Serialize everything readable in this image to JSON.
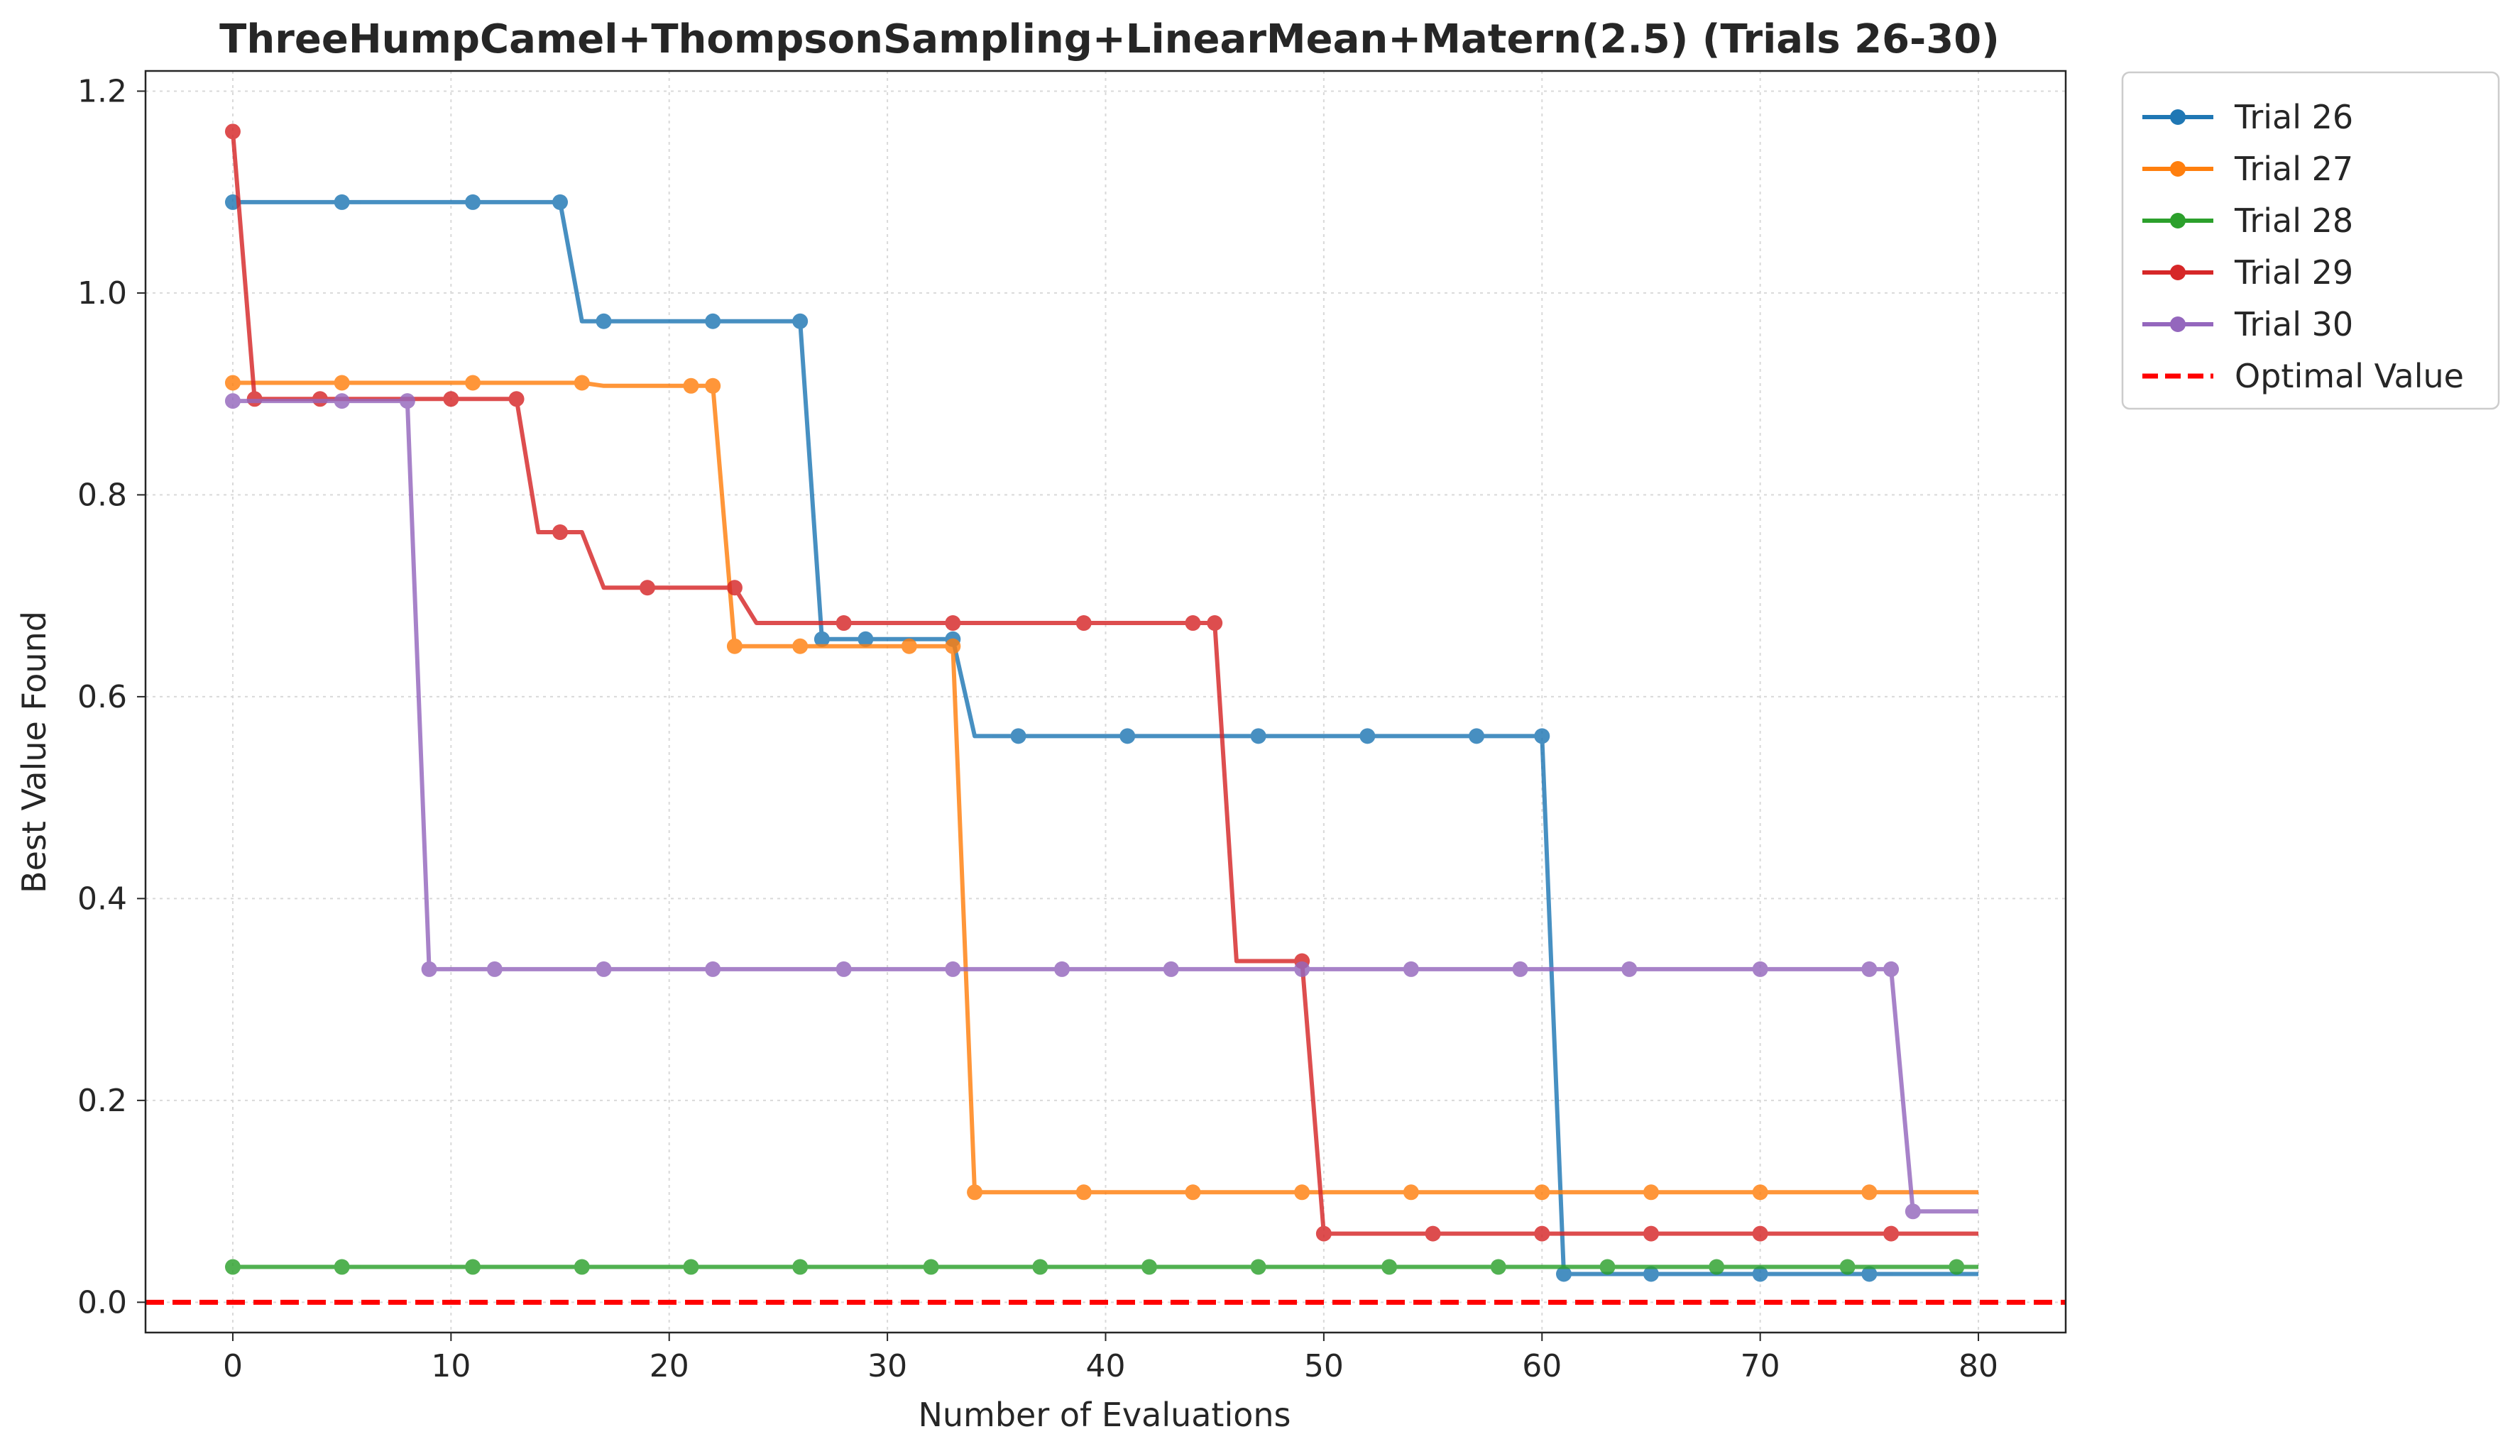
{
  "chart_data": {
    "type": "line",
    "title": "ThreeHumpCamel+ThompsonSampling+LinearMean+Matern(2.5) (Trials 26-30)",
    "xlabel": "Number of Evaluations",
    "ylabel": "Best Value Found",
    "xlim": [
      -4,
      84
    ],
    "ylim": [
      -0.03,
      1.22
    ],
    "xticks": [
      0,
      10,
      20,
      30,
      40,
      50,
      60,
      70,
      80
    ],
    "yticks": [
      0.0,
      0.2,
      0.4,
      0.6,
      0.8,
      1.0,
      1.2
    ],
    "ytick_labels": [
      "0.0",
      "0.2",
      "0.4",
      "0.6",
      "0.8",
      "1.0",
      "1.2"
    ],
    "grid": true,
    "legend_position": "outside-top-right",
    "series": [
      {
        "name": "Trial 26",
        "color": "#1f77b4",
        "line": [
          [
            0,
            1.09
          ],
          [
            15,
            1.09
          ],
          [
            16,
            0.972
          ],
          [
            26,
            0.972
          ],
          [
            27,
            0.657
          ],
          [
            33,
            0.657
          ],
          [
            34,
            0.561
          ],
          [
            60,
            0.561
          ],
          [
            61,
            0.028
          ],
          [
            80,
            0.028
          ]
        ],
        "markers": [
          [
            0,
            1.09
          ],
          [
            5,
            1.09
          ],
          [
            11,
            1.09
          ],
          [
            15,
            1.09
          ],
          [
            17,
            0.972
          ],
          [
            22,
            0.972
          ],
          [
            26,
            0.972
          ],
          [
            27,
            0.657
          ],
          [
            29,
            0.657
          ],
          [
            33,
            0.657
          ],
          [
            36,
            0.561
          ],
          [
            41,
            0.561
          ],
          [
            47,
            0.561
          ],
          [
            52,
            0.561
          ],
          [
            57,
            0.561
          ],
          [
            60,
            0.561
          ],
          [
            61,
            0.028
          ],
          [
            65,
            0.028
          ],
          [
            70,
            0.028
          ],
          [
            75,
            0.028
          ]
        ]
      },
      {
        "name": "Trial 27",
        "color": "#ff7f0e",
        "line": [
          [
            0,
            0.911
          ],
          [
            16,
            0.911
          ],
          [
            17,
            0.908
          ],
          [
            22,
            0.908
          ],
          [
            23,
            0.65
          ],
          [
            33,
            0.65
          ],
          [
            34,
            0.109
          ],
          [
            80,
            0.109
          ]
        ],
        "markers": [
          [
            0,
            0.911
          ],
          [
            5,
            0.911
          ],
          [
            11,
            0.911
          ],
          [
            16,
            0.911
          ],
          [
            21,
            0.908
          ],
          [
            22,
            0.908
          ],
          [
            23,
            0.65
          ],
          [
            26,
            0.65
          ],
          [
            31,
            0.65
          ],
          [
            33,
            0.65
          ],
          [
            34,
            0.109
          ],
          [
            39,
            0.109
          ],
          [
            44,
            0.109
          ],
          [
            49,
            0.109
          ],
          [
            54,
            0.109
          ],
          [
            60,
            0.109
          ],
          [
            65,
            0.109
          ],
          [
            70,
            0.109
          ],
          [
            75,
            0.109
          ]
        ]
      },
      {
        "name": "Trial 28",
        "color": "#2ca02c",
        "line": [
          [
            0,
            0.035
          ],
          [
            80,
            0.035
          ]
        ],
        "markers": [
          [
            0,
            0.035
          ],
          [
            5,
            0.035
          ],
          [
            11,
            0.035
          ],
          [
            16,
            0.035
          ],
          [
            21,
            0.035
          ],
          [
            26,
            0.035
          ],
          [
            32,
            0.035
          ],
          [
            37,
            0.035
          ],
          [
            42,
            0.035
          ],
          [
            47,
            0.035
          ],
          [
            53,
            0.035
          ],
          [
            58,
            0.035
          ],
          [
            63,
            0.035
          ],
          [
            68,
            0.035
          ],
          [
            74,
            0.035
          ],
          [
            79,
            0.035
          ]
        ]
      },
      {
        "name": "Trial 29",
        "color": "#d62728",
        "line": [
          [
            0,
            1.16
          ],
          [
            1,
            0.895
          ],
          [
            13,
            0.895
          ],
          [
            14,
            0.763
          ],
          [
            16,
            0.763
          ],
          [
            17,
            0.708
          ],
          [
            23,
            0.708
          ],
          [
            24,
            0.673
          ],
          [
            45,
            0.673
          ],
          [
            46,
            0.338
          ],
          [
            49,
            0.338
          ],
          [
            50,
            0.068
          ],
          [
            80,
            0.068
          ]
        ],
        "markers": [
          [
            0,
            1.16
          ],
          [
            1,
            0.895
          ],
          [
            4,
            0.895
          ],
          [
            10,
            0.895
          ],
          [
            13,
            0.895
          ],
          [
            15,
            0.763
          ],
          [
            19,
            0.708
          ],
          [
            23,
            0.708
          ],
          [
            28,
            0.673
          ],
          [
            33,
            0.673
          ],
          [
            39,
            0.673
          ],
          [
            44,
            0.673
          ],
          [
            45,
            0.673
          ],
          [
            49,
            0.338
          ],
          [
            50,
            0.068
          ],
          [
            55,
            0.068
          ],
          [
            60,
            0.068
          ],
          [
            65,
            0.068
          ],
          [
            70,
            0.068
          ],
          [
            76,
            0.068
          ]
        ]
      },
      {
        "name": "Trial 30",
        "color": "#9467bd",
        "line": [
          [
            0,
            0.893
          ],
          [
            8,
            0.893
          ],
          [
            9,
            0.33
          ],
          [
            76,
            0.33
          ],
          [
            77,
            0.09
          ],
          [
            80,
            0.09
          ]
        ],
        "markers": [
          [
            0,
            0.893
          ],
          [
            5,
            0.893
          ],
          [
            8,
            0.893
          ],
          [
            9,
            0.33
          ],
          [
            12,
            0.33
          ],
          [
            17,
            0.33
          ],
          [
            22,
            0.33
          ],
          [
            28,
            0.33
          ],
          [
            33,
            0.33
          ],
          [
            38,
            0.33
          ],
          [
            43,
            0.33
          ],
          [
            49,
            0.33
          ],
          [
            54,
            0.33
          ],
          [
            59,
            0.33
          ],
          [
            64,
            0.33
          ],
          [
            70,
            0.33
          ],
          [
            75,
            0.33
          ],
          [
            76,
            0.33
          ],
          [
            77,
            0.09
          ]
        ]
      }
    ],
    "reference_line": {
      "name": "Optimal Value",
      "y": 0.0,
      "color": "#ff0000",
      "style": "dashed"
    }
  }
}
